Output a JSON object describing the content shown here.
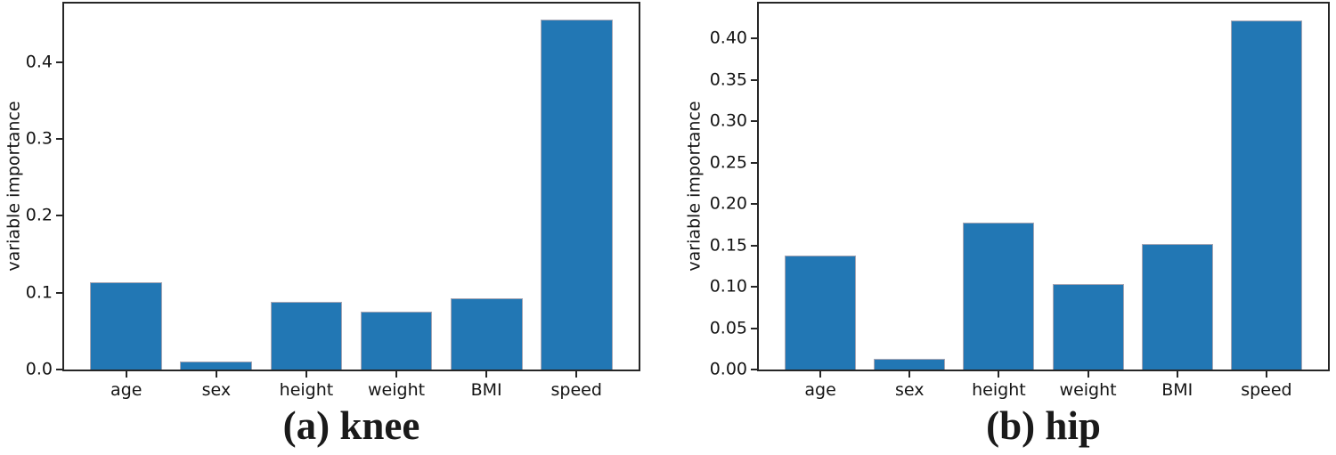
{
  "figure": {
    "background": "#ffffff",
    "bar_fill_color": "#2277b4",
    "bar_edge_color": "#a6a6b4",
    "spine_color": "#262626",
    "text_color": "#141414"
  },
  "chart_data": [
    {
      "type": "bar",
      "panel": "a",
      "caption": "(a) knee",
      "ylabel": "variable importance",
      "xlabel": "",
      "categories": [
        "age",
        "sex",
        "height",
        "weight",
        "BMI",
        "speed"
      ],
      "values": [
        0.114,
        0.011,
        0.088,
        0.075,
        0.093,
        0.455
      ],
      "ylim": [
        0,
        0.476
      ],
      "xlim": [
        -0.69,
        5.69
      ],
      "bar_width": 0.8,
      "grid": false,
      "legend_position": "none",
      "yticks": [
        {
          "value": 0.0,
          "label": "0.0"
        },
        {
          "value": 0.1,
          "label": "0.1"
        },
        {
          "value": 0.2,
          "label": "0.2"
        },
        {
          "value": 0.3,
          "label": "0.3"
        },
        {
          "value": 0.4,
          "label": "0.4"
        }
      ]
    },
    {
      "type": "bar",
      "panel": "b",
      "caption": "(b) hip",
      "ylabel": "variable importance",
      "xlabel": "",
      "categories": [
        "age",
        "sex",
        "height",
        "weight",
        "BMI",
        "speed"
      ],
      "values": [
        0.138,
        0.013,
        0.177,
        0.103,
        0.152,
        0.422
      ],
      "ylim": [
        0,
        0.442
      ],
      "xlim": [
        -0.69,
        5.69
      ],
      "bar_width": 0.8,
      "grid": false,
      "legend_position": "none",
      "yticks": [
        {
          "value": 0.0,
          "label": "0.00"
        },
        {
          "value": 0.05,
          "label": "0.05"
        },
        {
          "value": 0.1,
          "label": "0.10"
        },
        {
          "value": 0.15,
          "label": "0.15"
        },
        {
          "value": 0.2,
          "label": "0.20"
        },
        {
          "value": 0.25,
          "label": "0.25"
        },
        {
          "value": 0.3,
          "label": "0.30"
        },
        {
          "value": 0.35,
          "label": "0.35"
        },
        {
          "value": 0.4,
          "label": "0.40"
        }
      ]
    }
  ]
}
